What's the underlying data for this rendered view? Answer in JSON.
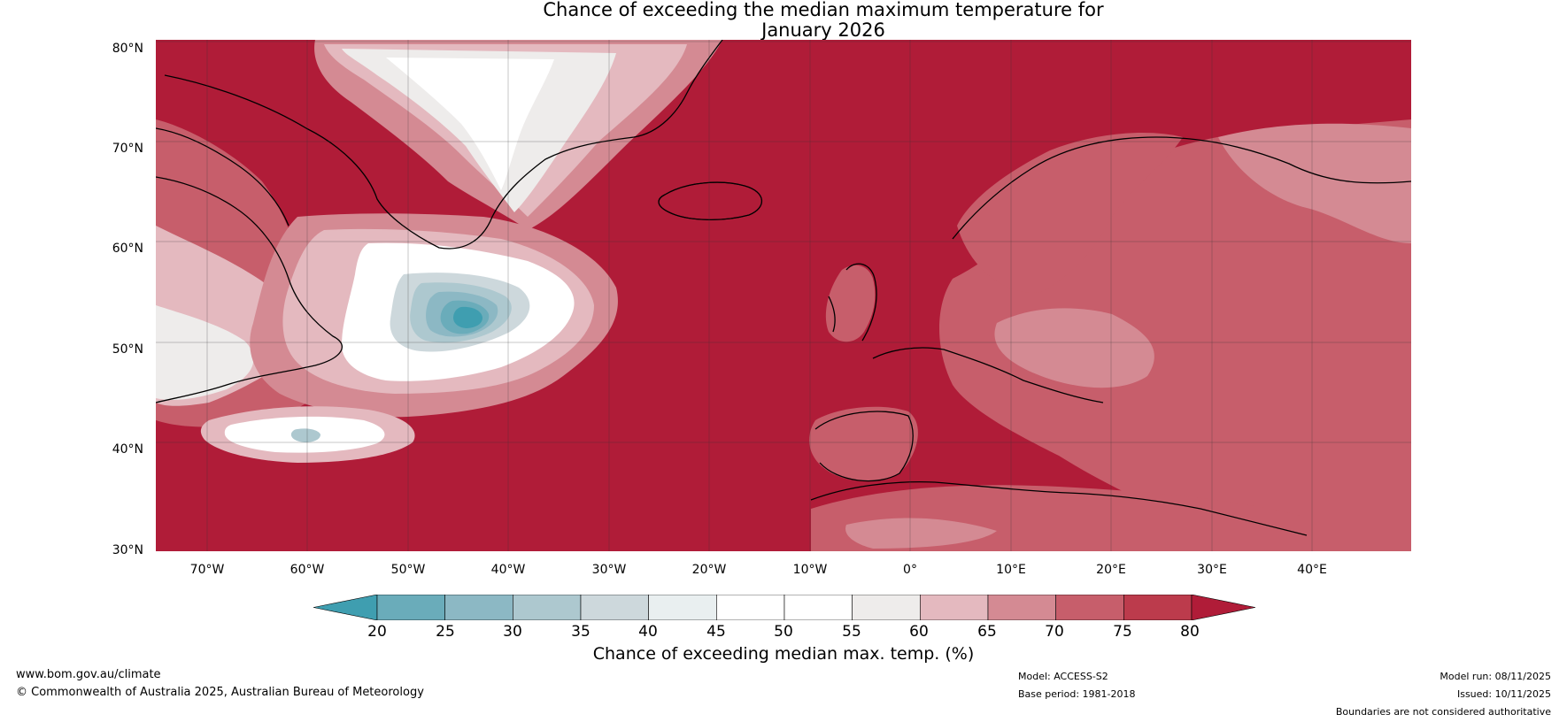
{
  "title": {
    "line1": "Chance of exceeding the median maximum temperature for",
    "line2": "January 2026"
  },
  "lat_labels": [
    "80°N",
    "70°N",
    "60°N",
    "50°N",
    "40°N",
    "30°N"
  ],
  "lon_labels": [
    "70°W",
    "60°W",
    "50°W",
    "40°W",
    "30°W",
    "20°W",
    "10°W",
    "0°",
    "10°E",
    "20°E",
    "30°E",
    "40°E"
  ],
  "colorbar": {
    "ticks": [
      "20",
      "25",
      "30",
      "35",
      "40",
      "45",
      "50",
      "55",
      "60",
      "65",
      "70",
      "75",
      "80"
    ],
    "label": "Chance of exceeding median max. temp. (%)",
    "colors": [
      "#3f9eb0",
      "#6aacba",
      "#8cb8c4",
      "#adc8cf",
      "#cdd8dc",
      "#e9eff0",
      "#ffffff",
      "#ffffff",
      "#eeeceb",
      "#e4b9bf",
      "#d48a93",
      "#c75e6b",
      "#bc3b4c",
      "#b01c38"
    ]
  },
  "legend_colors": {
    "ocean_high": "#b01c38",
    "land_70": "#c75e6b",
    "mid_65": "#d48a93",
    "light_60": "#e4b9bf",
    "neutral": "#eeeceb",
    "teal_low": "#3f9eb0"
  },
  "footer": {
    "website": "www.bom.gov.au/climate",
    "copyright": "© Commonwealth of Australia 2025, Australian Bureau of Meteorology",
    "model": "Model: ACCESS-S2",
    "base_period": "Base period: 1981-2018",
    "model_run": "Model run: 08/11/2025",
    "issued": "Issued: 10/11/2025",
    "disclaimer": "Boundaries are not considered authoritative"
  }
}
